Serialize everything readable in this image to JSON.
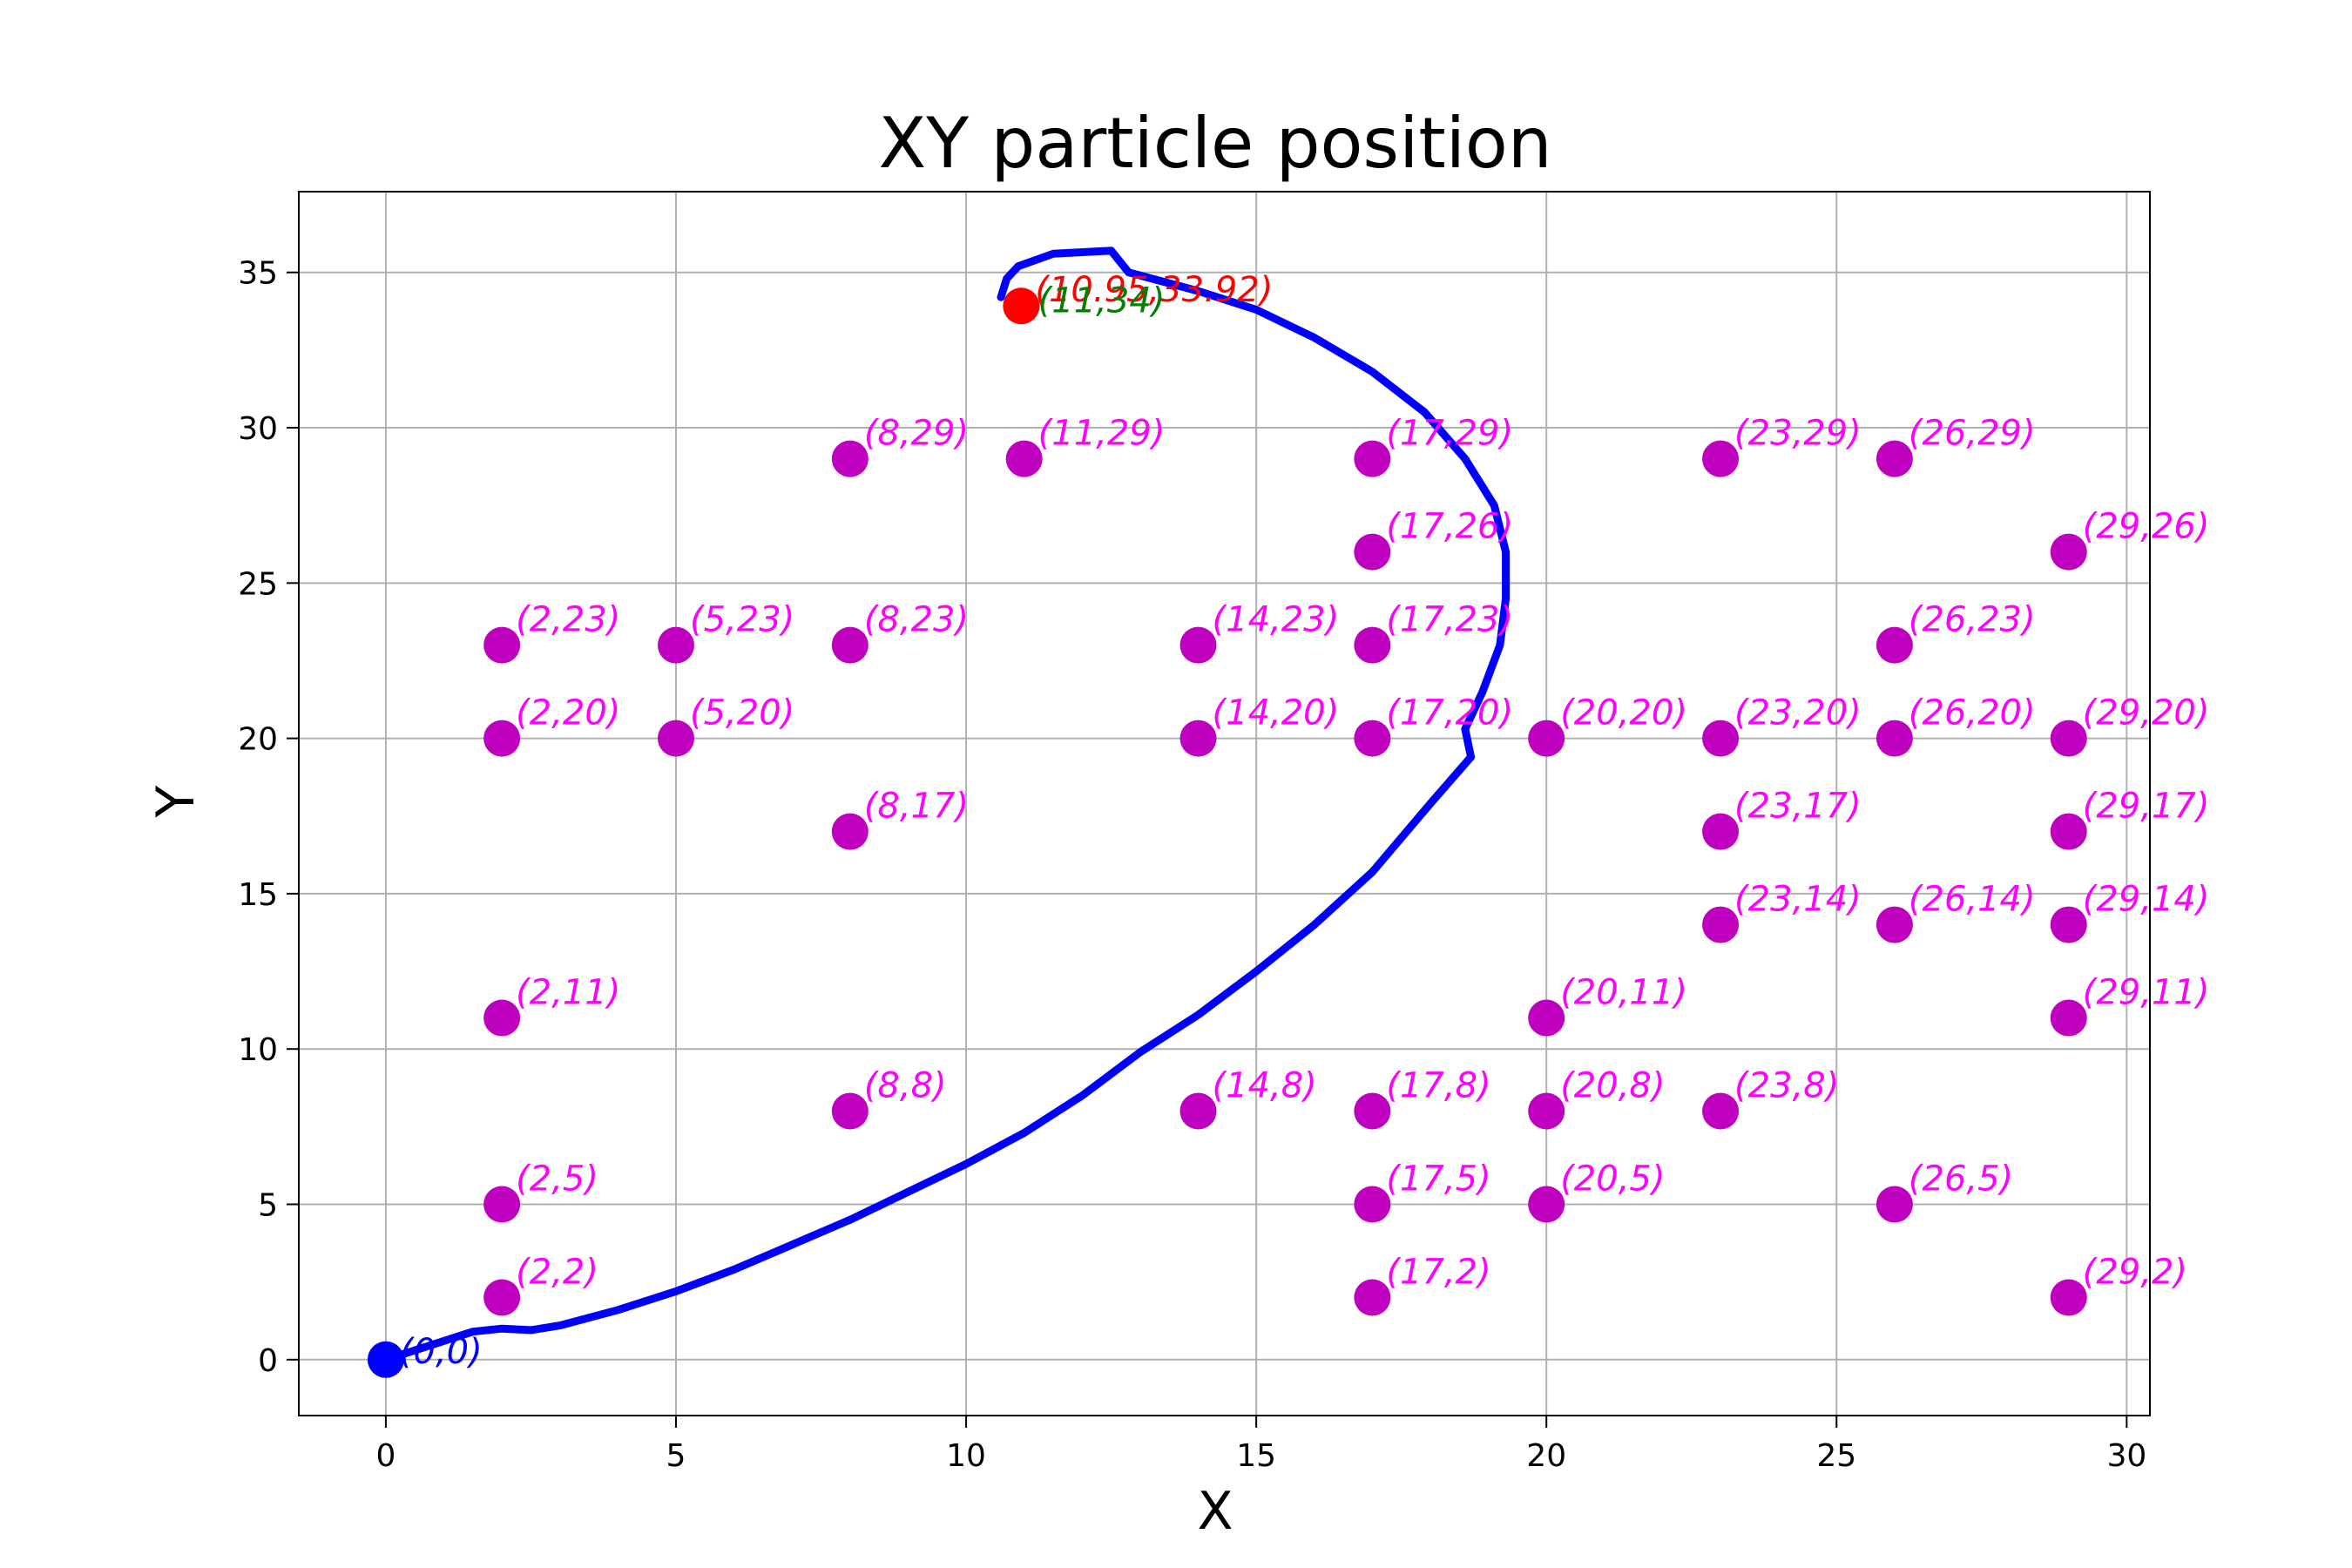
{
  "chart_data": {
    "type": "scatter",
    "title": "XY particle position",
    "xlabel": "X",
    "ylabel": "Y",
    "xlim": [
      -1.5,
      30.4
    ],
    "ylim": [
      -1.8,
      37.6
    ],
    "xticks": [
      0,
      5,
      10,
      15,
      20,
      25,
      30
    ],
    "yticks": [
      0,
      5,
      10,
      15,
      20,
      25,
      30,
      35
    ],
    "grid": true,
    "legend": "none",
    "colors": {
      "obstacles": "#bf00bf",
      "obstacle_labels": "#ff00ff",
      "path": "#0000ff",
      "start": "#0000ff",
      "end": "#ff0000",
      "target_label": "#008000"
    },
    "obstacles": [
      {
        "x": 8,
        "y": 29,
        "label": "(8,29)"
      },
      {
        "x": 11,
        "y": 29,
        "label": "(11,29)"
      },
      {
        "x": 17,
        "y": 29,
        "label": "(17,29)"
      },
      {
        "x": 23,
        "y": 29,
        "label": "(23,29)"
      },
      {
        "x": 26,
        "y": 29,
        "label": "(26,29)"
      },
      {
        "x": 17,
        "y": 26,
        "label": "(17,26)"
      },
      {
        "x": 29,
        "y": 26,
        "label": "(29,26)"
      },
      {
        "x": 2,
        "y": 23,
        "label": "(2,23)"
      },
      {
        "x": 5,
        "y": 23,
        "label": "(5,23)"
      },
      {
        "x": 8,
        "y": 23,
        "label": "(8,23)"
      },
      {
        "x": 14,
        "y": 23,
        "label": "(14,23)"
      },
      {
        "x": 17,
        "y": 23,
        "label": "(17,23)"
      },
      {
        "x": 26,
        "y": 23,
        "label": "(26,23)"
      },
      {
        "x": 2,
        "y": 20,
        "label": "(2,20)"
      },
      {
        "x": 5,
        "y": 20,
        "label": "(5,20)"
      },
      {
        "x": 14,
        "y": 20,
        "label": "(14,20)"
      },
      {
        "x": 17,
        "y": 20,
        "label": "(17,20)"
      },
      {
        "x": 20,
        "y": 20,
        "label": "(20,20)"
      },
      {
        "x": 23,
        "y": 20,
        "label": "(23,20)"
      },
      {
        "x": 26,
        "y": 20,
        "label": "(26,20)"
      },
      {
        "x": 29,
        "y": 20,
        "label": "(29,20)"
      },
      {
        "x": 8,
        "y": 17,
        "label": "(8,17)"
      },
      {
        "x": 23,
        "y": 17,
        "label": "(23,17)"
      },
      {
        "x": 29,
        "y": 17,
        "label": "(29,17)"
      },
      {
        "x": 23,
        "y": 14,
        "label": "(23,14)"
      },
      {
        "x": 26,
        "y": 14,
        "label": "(26,14)"
      },
      {
        "x": 29,
        "y": 14,
        "label": "(29,14)"
      },
      {
        "x": 2,
        "y": 11,
        "label": "(2,11)"
      },
      {
        "x": 20,
        "y": 11,
        "label": "(20,11)"
      },
      {
        "x": 29,
        "y": 11,
        "label": "(29,11)"
      },
      {
        "x": 8,
        "y": 8,
        "label": "(8,8)"
      },
      {
        "x": 14,
        "y": 8,
        "label": "(14,8)"
      },
      {
        "x": 17,
        "y": 8,
        "label": "(17,8)"
      },
      {
        "x": 20,
        "y": 8,
        "label": "(20,8)"
      },
      {
        "x": 23,
        "y": 8,
        "label": "(23,8)"
      },
      {
        "x": 2,
        "y": 5,
        "label": "(2,5)"
      },
      {
        "x": 17,
        "y": 5,
        "label": "(17,5)"
      },
      {
        "x": 20,
        "y": 5,
        "label": "(20,5)"
      },
      {
        "x": 26,
        "y": 5,
        "label": "(26,5)"
      },
      {
        "x": 2,
        "y": 2,
        "label": "(2,2)"
      },
      {
        "x": 17,
        "y": 2,
        "label": "(17,2)"
      },
      {
        "x": 29,
        "y": 2,
        "label": "(29,2)"
      }
    ],
    "path": [
      [
        0,
        0
      ],
      [
        0.5,
        0.3
      ],
      [
        1,
        0.6
      ],
      [
        1.5,
        0.9
      ],
      [
        2,
        1.0
      ],
      [
        2.5,
        0.95
      ],
      [
        3,
        1.1
      ],
      [
        4,
        1.6
      ],
      [
        5,
        2.2
      ],
      [
        6,
        2.9
      ],
      [
        7,
        3.7
      ],
      [
        8,
        4.5
      ],
      [
        9,
        5.4
      ],
      [
        10,
        6.3
      ],
      [
        11,
        7.3
      ],
      [
        12,
        8.5
      ],
      [
        13,
        9.9
      ],
      [
        14,
        11.1
      ],
      [
        15,
        12.5
      ],
      [
        16,
        14.0
      ],
      [
        17,
        15.7
      ],
      [
        18,
        17.9
      ],
      [
        18.7,
        19.4
      ],
      [
        18.6,
        20.3
      ],
      [
        18.9,
        21.5
      ],
      [
        19.2,
        23.0
      ],
      [
        19.3,
        24.5
      ],
      [
        19.3,
        26.0
      ],
      [
        19.1,
        27.5
      ],
      [
        18.6,
        29.0
      ],
      [
        17.9,
        30.5
      ],
      [
        17.0,
        31.8
      ],
      [
        16.0,
        32.9
      ],
      [
        15.0,
        33.8
      ],
      [
        14.0,
        34.4
      ],
      [
        12.8,
        35.0
      ],
      [
        12.5,
        35.7
      ],
      [
        11.5,
        35.6
      ],
      [
        10.9,
        35.2
      ],
      [
        10.7,
        34.8
      ],
      [
        10.6,
        34.2
      ]
    ],
    "start": {
      "x": 0,
      "y": 0,
      "label": "(0,0)"
    },
    "end": {
      "x": 10.95,
      "y": 33.92,
      "label": "(10.95,33.92)"
    },
    "target": {
      "x": 11,
      "y": 34,
      "label": "(11,34)"
    }
  }
}
